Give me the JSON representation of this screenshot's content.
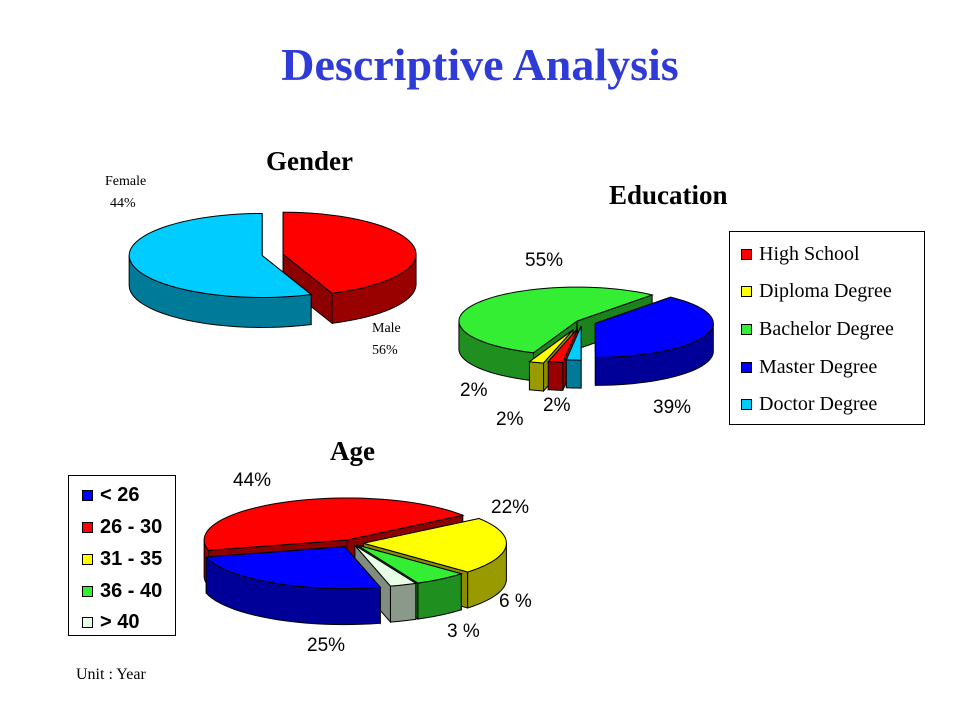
{
  "slide": {
    "title": "Descriptive Analysis",
    "unit_note": "Unit : Year"
  },
  "colors": {
    "red": "#ff0000",
    "yellow": "#ffff00",
    "green": "#33ee33",
    "blue": "#0000ff",
    "cyan": "#00ccff",
    "pale_green": "#e6ffe6"
  },
  "chart_data": [
    {
      "type": "pie",
      "style": "3d-exploded",
      "title": "Gender",
      "categories": [
        "Female",
        "Male"
      ],
      "values": [
        44,
        56
      ],
      "labels": [
        "44%",
        "56%"
      ],
      "colors": [
        "#ff0000",
        "#00ccff"
      ]
    },
    {
      "type": "pie",
      "style": "3d-exploded",
      "title": "Education",
      "categories": [
        "High School",
        "Diploma Degree",
        "Bachelor Degree",
        "Master Degree",
        "Doctor Degree"
      ],
      "values": [
        2,
        2,
        55,
        39,
        2
      ],
      "labels": [
        "2%",
        "2%",
        "55%",
        "39%",
        "2%"
      ],
      "colors": [
        "#ff0000",
        "#ffff00",
        "#33ee33",
        "#0000ff",
        "#00ccff"
      ],
      "legend_position": "right"
    },
    {
      "type": "pie",
      "style": "3d-exploded",
      "title": "Age",
      "categories": [
        "< 26",
        "26 - 30",
        "31 - 35",
        "36 - 40",
        "> 40"
      ],
      "values": [
        25,
        44,
        22,
        6,
        3
      ],
      "labels": [
        "25%",
        "44%",
        "22%",
        "6 %",
        "3 %"
      ],
      "colors": [
        "#0000ff",
        "#ff0000",
        "#ffff00",
        "#33ee33",
        "#e6ffe6"
      ],
      "legend_categories": [
        "< 26",
        "26 - 30",
        "31 - 35",
        "36 - 40",
        "> 40"
      ],
      "legend_colors": [
        "#0000ff",
        "#ff0000",
        "#ffff00",
        "#33ee33",
        "#e6ffe6"
      ],
      "legend_position": "left"
    }
  ]
}
